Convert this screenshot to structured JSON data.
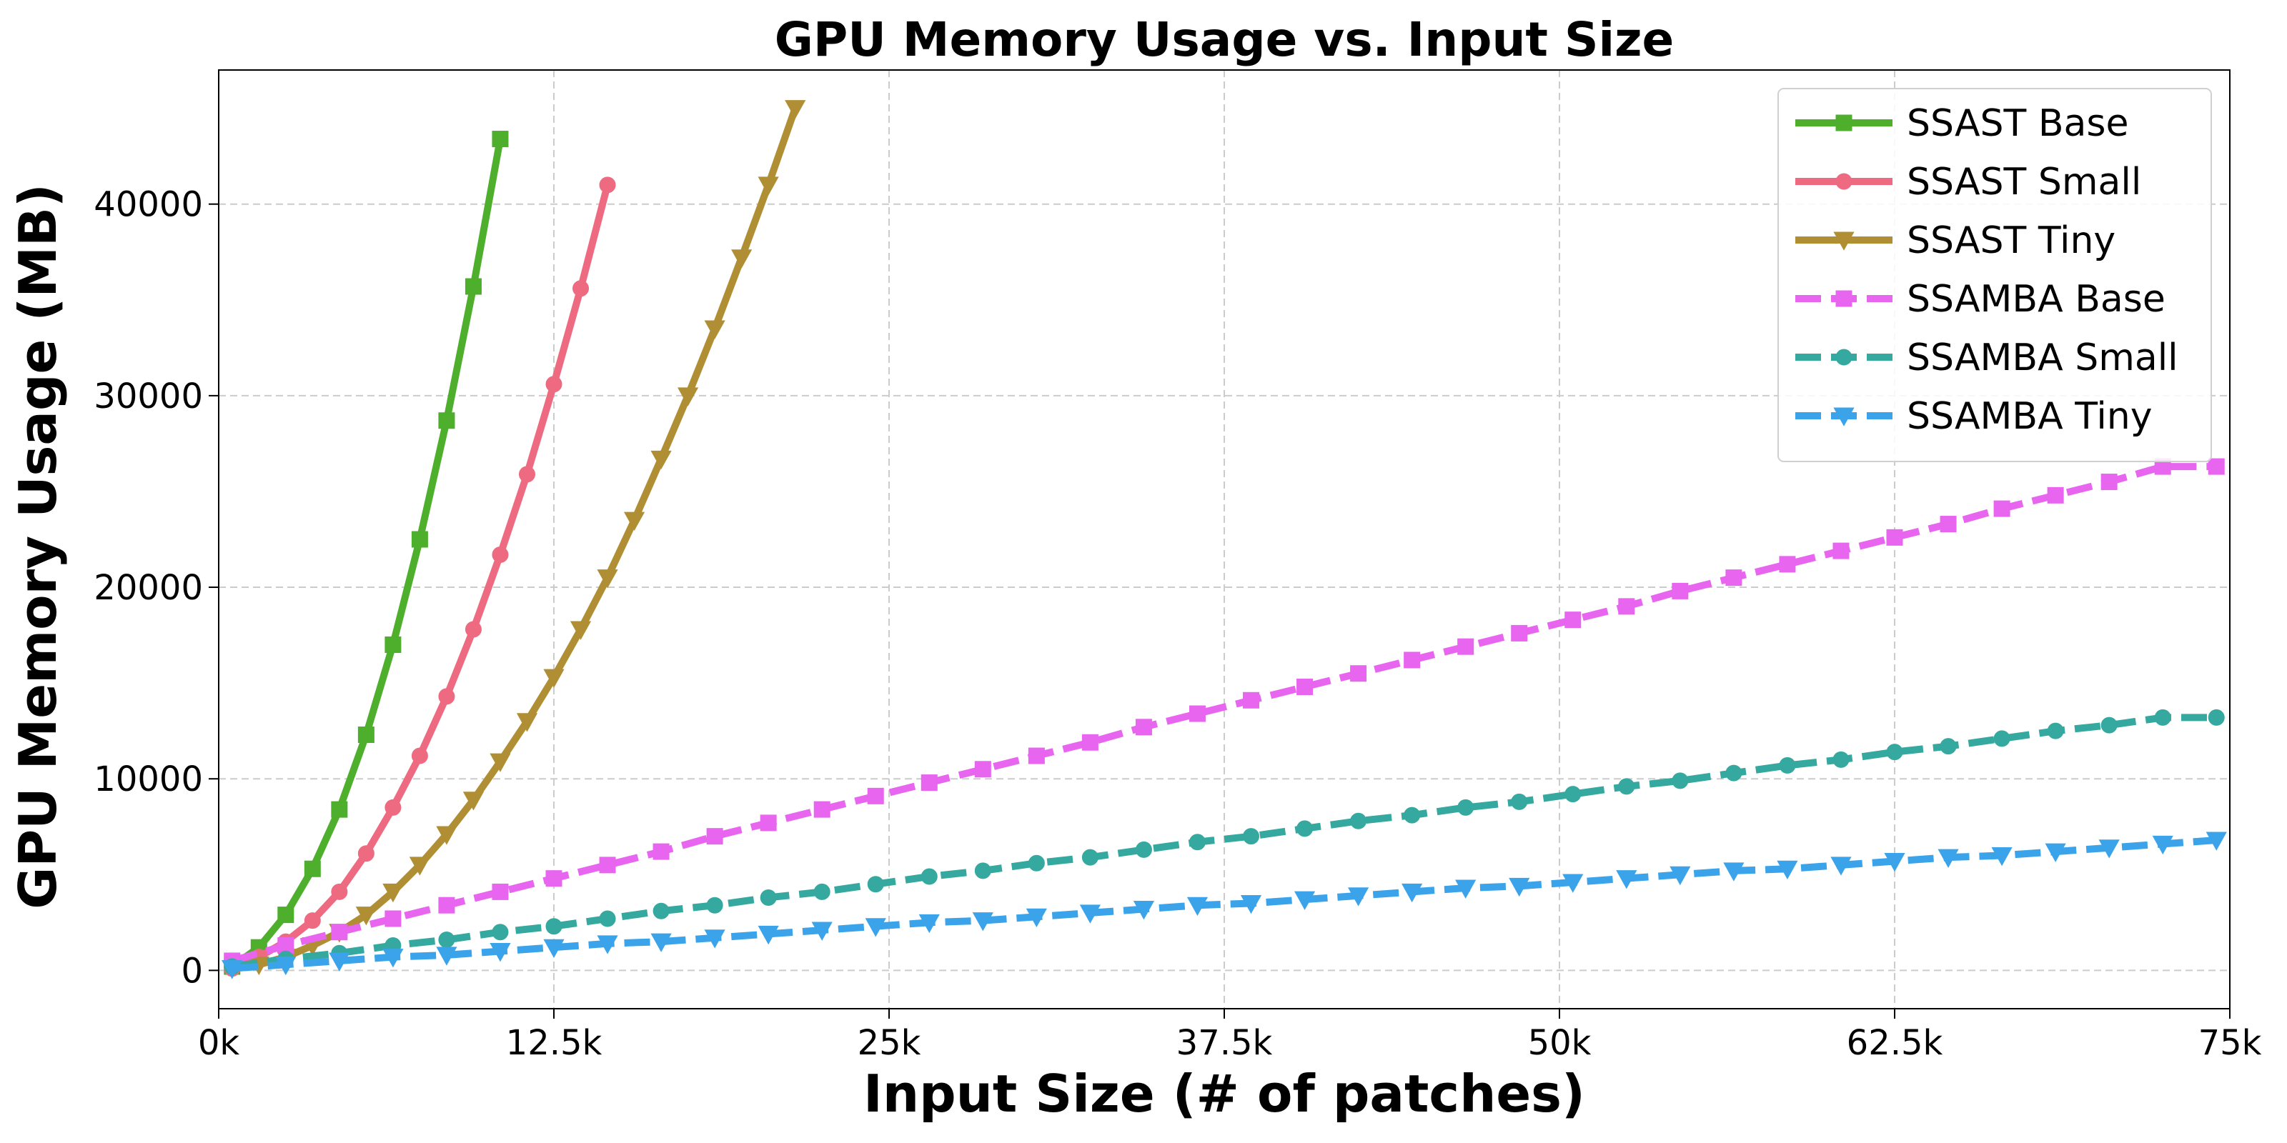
{
  "chart_data": {
    "type": "line",
    "title": "GPU Memory Usage vs. Input Size",
    "xlabel": "Input Size (# of  patches)",
    "ylabel": "GPU Memory Usage (MB)",
    "xlim": [
      0,
      75000
    ],
    "ylim": [
      -2000,
      47000
    ],
    "x_ticks": [
      0,
      12500,
      25000,
      37500,
      50000,
      62500,
      75000
    ],
    "x_tick_labels": [
      "0k",
      "12.5k",
      "25k",
      "37.5k",
      "50k",
      "62.5k",
      "75k"
    ],
    "y_ticks": [
      0,
      10000,
      20000,
      30000,
      40000
    ],
    "y_tick_labels": [
      "0",
      "10000",
      "20000",
      "30000",
      "40000"
    ],
    "grid": true,
    "legend_position": "top-right",
    "series": [
      {
        "name": "SSAST Base",
        "color": "#4daf2c",
        "dash": "solid",
        "marker": "square",
        "x": [
          500,
          1500,
          2500,
          3500,
          4500,
          5500,
          6500,
          7500,
          8500,
          9500,
          10500
        ],
        "y": [
          200,
          1200,
          2900,
          5300,
          8400,
          12300,
          17000,
          22500,
          28700,
          35700,
          43400
        ]
      },
      {
        "name": "SSAST Small",
        "color": "#ee6a80",
        "dash": "solid",
        "marker": "circle",
        "x": [
          500,
          1500,
          2500,
          3500,
          4500,
          5500,
          6500,
          7500,
          8500,
          9500,
          10500,
          11500,
          12500,
          13500,
          14500
        ],
        "y": [
          100,
          700,
          1500,
          2600,
          4100,
          6100,
          8500,
          11200,
          14300,
          17800,
          21700,
          25900,
          30600,
          35600,
          41000
        ]
      },
      {
        "name": "SSAST Tiny",
        "color": "#b08e33",
        "dash": "solid",
        "marker": "triangle-down",
        "x": [
          500,
          1500,
          2500,
          3500,
          4500,
          5500,
          6500,
          7500,
          8500,
          9500,
          10500,
          11500,
          12500,
          13500,
          14500,
          15500,
          16500,
          17500,
          18500,
          19500,
          20500,
          21500
        ],
        "y": [
          100,
          300,
          700,
          1300,
          2000,
          2900,
          4100,
          5500,
          7100,
          8900,
          10900,
          13000,
          15300,
          17800,
          20500,
          23500,
          26700,
          30000,
          33500,
          37200,
          41000,
          45000
        ]
      },
      {
        "name": "SSAMBA Base",
        "color": "#e865ef",
        "dash": "dashed",
        "marker": "square",
        "x": [
          500,
          2500,
          4500,
          6500,
          8500,
          10500,
          12500,
          14500,
          16500,
          18500,
          20500,
          22500,
          24500,
          26500,
          28500,
          30500,
          32500,
          34500,
          36500,
          38500,
          40500,
          42500,
          44500,
          46500,
          48500,
          50500,
          52500,
          54500,
          56500,
          58500,
          60500,
          62500,
          64500,
          66500,
          68500,
          70500,
          72500,
          74500
        ],
        "y": [
          500,
          1300,
          2000,
          2700,
          3400,
          4100,
          4800,
          5500,
          6200,
          7000,
          7700,
          8400,
          9100,
          9800,
          10500,
          11200,
          11900,
          12700,
          13400,
          14100,
          14800,
          15500,
          16200,
          16900,
          17600,
          18300,
          19000,
          19800,
          20500,
          21200,
          21900,
          22600,
          23300,
          24100,
          24800,
          25500,
          26300,
          26300
        ]
      },
      {
        "name": "SSAMBA Small",
        "color": "#35a99f",
        "dash": "dashed",
        "marker": "circle",
        "x": [
          500,
          2500,
          4500,
          6500,
          8500,
          10500,
          12500,
          14500,
          16500,
          18500,
          20500,
          22500,
          24500,
          26500,
          28500,
          30500,
          32500,
          34500,
          36500,
          38500,
          40500,
          42500,
          44500,
          46500,
          48500,
          50500,
          52500,
          54500,
          56500,
          58500,
          60500,
          62500,
          64500,
          66500,
          68500,
          70500,
          72500,
          74500
        ],
        "y": [
          200,
          600,
          900,
          1300,
          1600,
          2000,
          2300,
          2700,
          3100,
          3400,
          3800,
          4100,
          4500,
          4900,
          5200,
          5600,
          5900,
          6300,
          6700,
          7000,
          7400,
          7800,
          8100,
          8500,
          8800,
          9200,
          9600,
          9900,
          10300,
          10700,
          11000,
          11400,
          11700,
          12100,
          12500,
          12800,
          13200,
          13200
        ]
      },
      {
        "name": "SSAMBA Tiny",
        "color": "#3ba3e9",
        "dash": "dashed",
        "marker": "triangle-down",
        "x": [
          500,
          2500,
          4500,
          6500,
          8500,
          10500,
          12500,
          14500,
          16500,
          18500,
          20500,
          22500,
          24500,
          26500,
          28500,
          30500,
          32500,
          34500,
          36500,
          38500,
          40500,
          42500,
          44500,
          46500,
          48500,
          50500,
          52500,
          54500,
          56500,
          58500,
          60500,
          62500,
          64500,
          66500,
          68500,
          70500,
          72500,
          74500
        ],
        "y": [
          100,
          300,
          500,
          700,
          800,
          1000,
          1200,
          1400,
          1500,
          1700,
          1900,
          2100,
          2300,
          2500,
          2600,
          2800,
          3000,
          3200,
          3400,
          3500,
          3700,
          3900,
          4100,
          4300,
          4400,
          4600,
          4800,
          5000,
          5200,
          5300,
          5500,
          5700,
          5900,
          6000,
          6200,
          6400,
          6600,
          6800
        ]
      }
    ]
  }
}
